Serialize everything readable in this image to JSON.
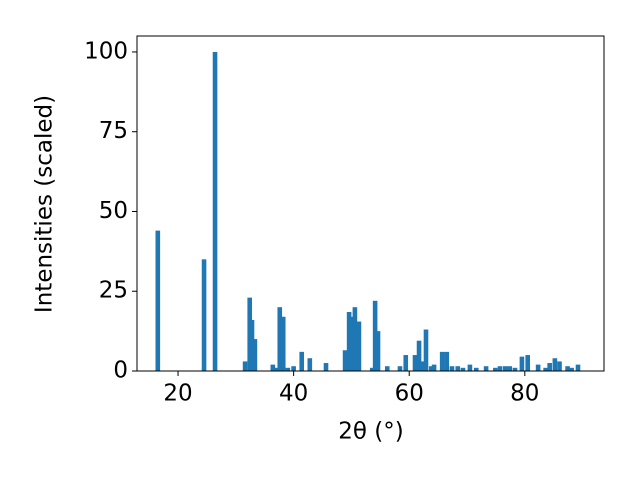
{
  "chart_data": {
    "type": "bar",
    "x_label": "2θ (°)",
    "y_label": "Intensities (scaled)",
    "color": "#1f77b4",
    "x": [
      16.5,
      24.5,
      26.4,
      31.6,
      32.4,
      32.8,
      33.3,
      36.4,
      37.0,
      37.6,
      38.2,
      39.0,
      40.0,
      41.4,
      42.8,
      45.6,
      48.9,
      49.6,
      50.1,
      50.6,
      51.3,
      53.6,
      54.1,
      54.6,
      56.2,
      58.4,
      59.4,
      61.0,
      61.7,
      62.2,
      62.9,
      63.8,
      64.3,
      65.7,
      66.5,
      67.4,
      68.4,
      69.3,
      70.5,
      71.6,
      73.3,
      74.9,
      75.7,
      76.6,
      77.4,
      78.3,
      79.5,
      80.5,
      82.3,
      83.6,
      84.3,
      85.2,
      86.0,
      87.4,
      88.1,
      89.2
    ],
    "values": [
      44,
      35,
      100,
      3,
      23,
      16,
      10,
      2,
      1,
      20,
      17,
      1,
      1.5,
      6,
      4,
      2.5,
      6.5,
      18.5,
      17,
      20,
      15.5,
      1,
      22,
      12.5,
      1.5,
      1.5,
      5,
      5,
      9.5,
      3,
      13,
      1.5,
      2,
      6,
      6,
      1.5,
      1.5,
      1,
      2,
      1,
      1.5,
      1,
      1.5,
      1.5,
      1.5,
      1,
      4.5,
      5,
      2,
      1,
      2.5,
      4,
      3,
      1.5,
      1,
      2
    ],
    "xlim": [
      12.9,
      93.7
    ],
    "ylim": [
      0,
      105
    ],
    "xticks": [
      20,
      40,
      60,
      80
    ],
    "yticks": [
      0,
      25,
      50,
      75,
      100
    ]
  }
}
